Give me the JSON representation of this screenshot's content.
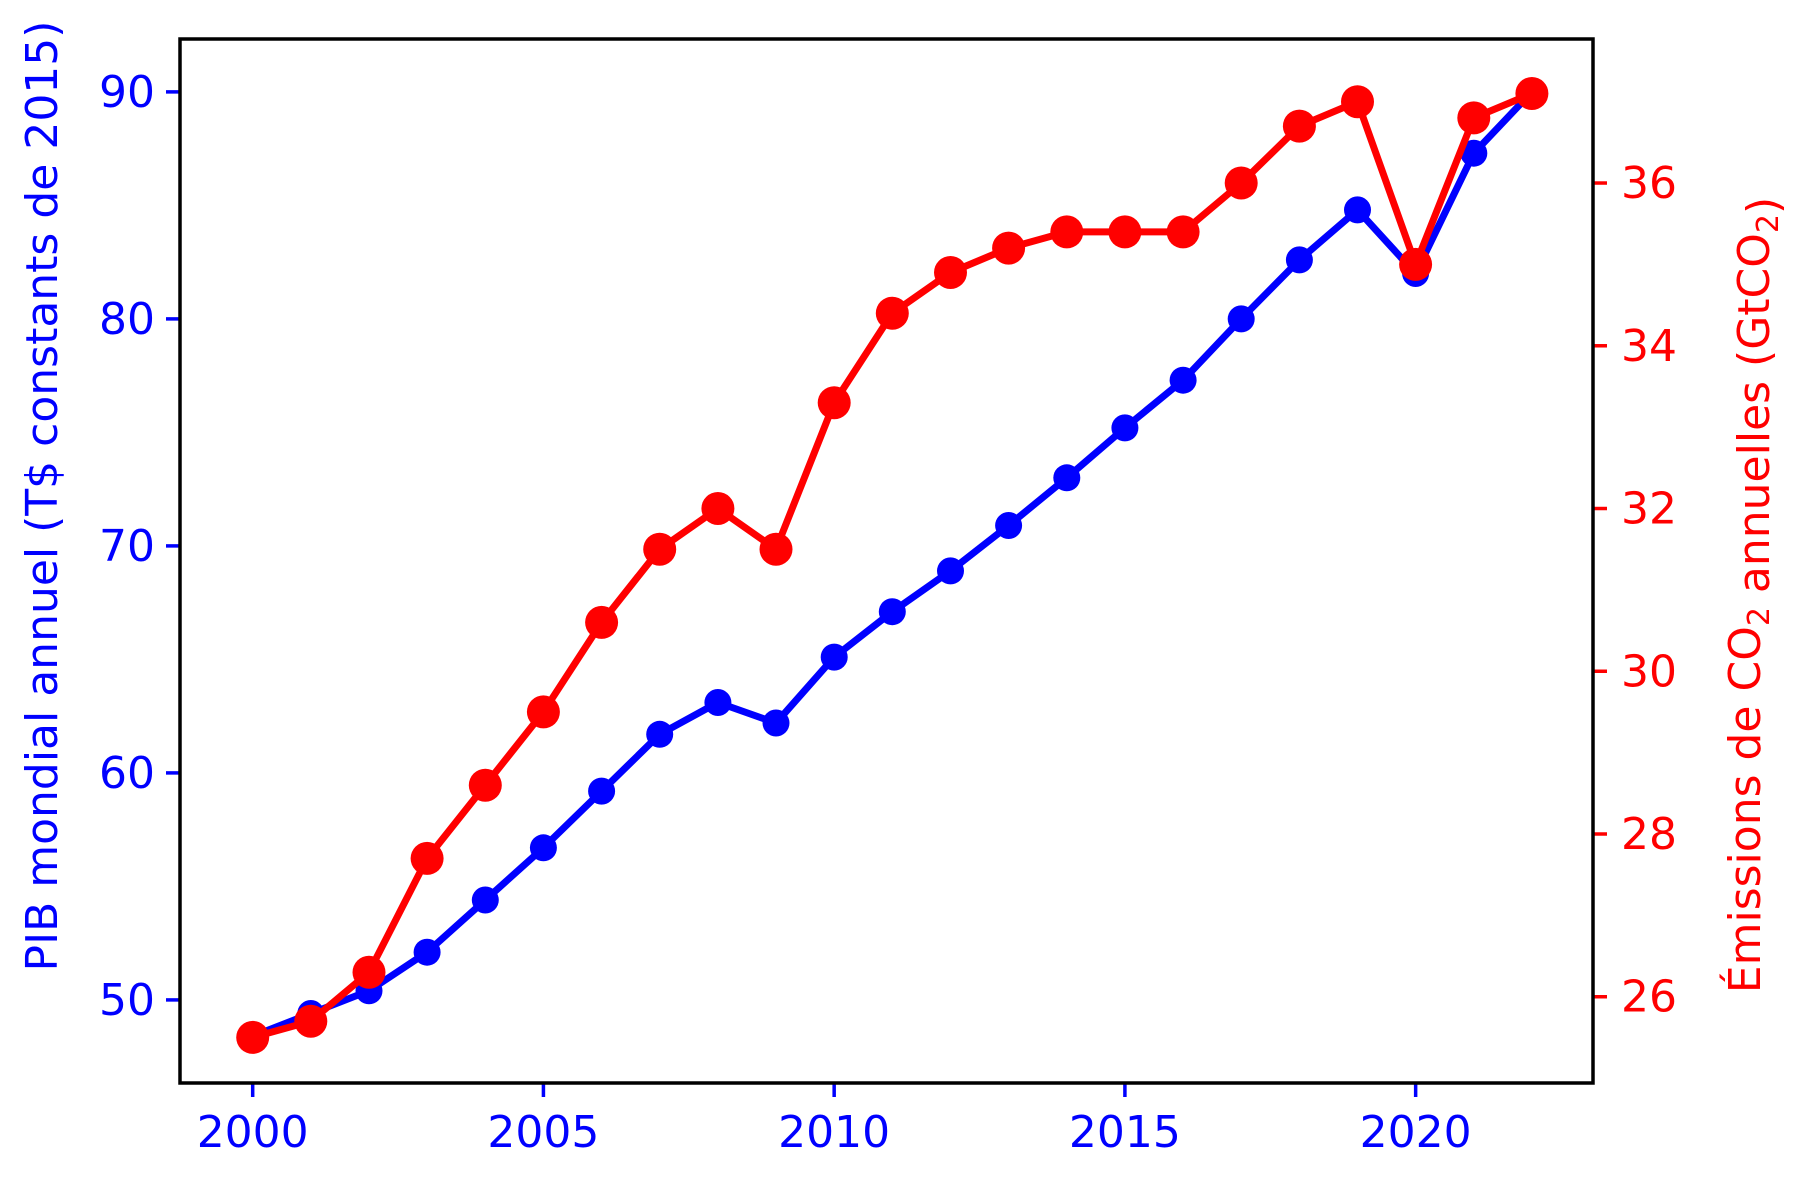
{
  "figure": {
    "background": "#ffffff",
    "title": "",
    "legend": "none"
  },
  "chart_data": {
    "type": "line",
    "x": [
      2000,
      2001,
      2002,
      2003,
      2004,
      2005,
      2006,
      2007,
      2008,
      2009,
      2010,
      2011,
      2012,
      2013,
      2014,
      2015,
      2016,
      2017,
      2018,
      2019,
      2020,
      2021,
      2022
    ],
    "series": [
      {
        "name": "PIB mondial annuel (T$ constants de 2015)",
        "axis": "left",
        "color": "#0000ff",
        "marker": "circle",
        "marker_radius": 13.5,
        "line_width": 7,
        "values": [
          48.4,
          49.4,
          50.4,
          52.1,
          54.4,
          56.7,
          59.2,
          61.7,
          63.1,
          62.2,
          65.1,
          67.1,
          68.9,
          70.9,
          73.0,
          75.2,
          77.3,
          80.0,
          82.6,
          84.8,
          82.0,
          87.3,
          90.0
        ]
      },
      {
        "name": "Émissions de CO₂ annuelles (GtCO₂)",
        "axis": "right",
        "color": "#ff0000",
        "marker": "circle",
        "marker_radius": 16.5,
        "line_width": 7,
        "values": [
          25.5,
          25.7,
          26.3,
          27.7,
          28.6,
          29.5,
          30.6,
          31.5,
          32.0,
          31.5,
          33.3,
          34.4,
          34.9,
          35.2,
          35.4,
          35.4,
          35.4,
          36.0,
          36.7,
          37.0,
          35.0,
          36.8,
          37.1
        ]
      }
    ],
    "xlabel": "",
    "xticks": [
      2000,
      2005,
      2010,
      2015,
      2020
    ],
    "xlim": [
      1998.75,
      2023.05
    ],
    "x_tick_color": "#0000ff",
    "left_axis": {
      "label": "PIB mondial annuel (T$ constants de 2015)",
      "label_parts": [
        {
          "text": "PIB mondial annuel (T$ constants de 2015)",
          "sub": false
        }
      ],
      "ticks": [
        50,
        60,
        70,
        80,
        90
      ],
      "lim": [
        46.34,
        92.33
      ],
      "color": "#0000ff"
    },
    "right_axis": {
      "label": "Émissions de CO₂ annuelles (GtCO₂)",
      "label_parts": [
        {
          "text": "Émissions de CO",
          "sub": false
        },
        {
          "text": "2",
          "sub": true
        },
        {
          "text": " annuelles (GtCO",
          "sub": false
        },
        {
          "text": "2",
          "sub": true
        },
        {
          "text": ")",
          "sub": false
        }
      ],
      "ticks": [
        26,
        28,
        30,
        32,
        34,
        36
      ],
      "lim": [
        24.94,
        37.77
      ],
      "color": "#ff0000"
    },
    "grid": false,
    "legend_position": "none",
    "spine_color": "#000000"
  }
}
